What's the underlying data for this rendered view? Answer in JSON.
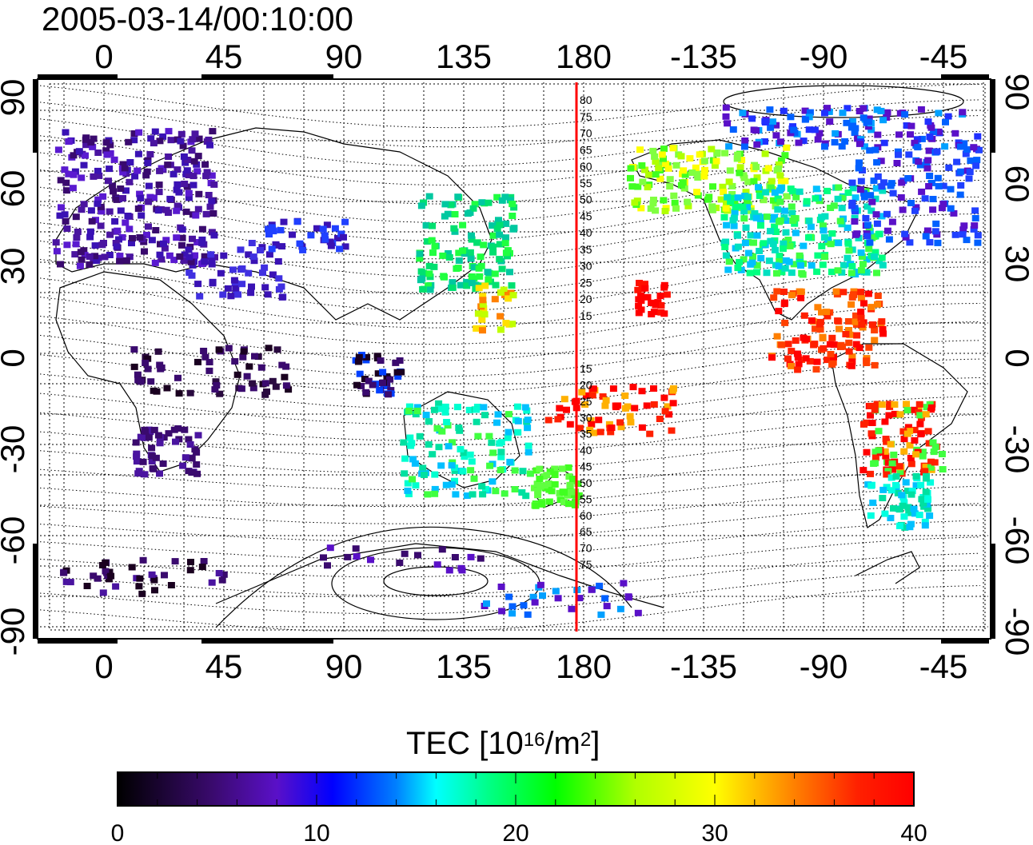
{
  "timestamp": "2005-03-14/00:10:00",
  "map": {
    "top_lon_labels": [
      "0",
      "45",
      "90",
      "135",
      "180",
      "-135",
      "-90",
      "-45"
    ],
    "bottom_lon_labels": [
      "0",
      "45",
      "90",
      "135",
      "180",
      "-135",
      "-90",
      "-45"
    ],
    "left_lat_labels": [
      "90",
      "60",
      "30",
      "0",
      "-30",
      "-60",
      "-90"
    ],
    "right_lat_labels": [
      "90",
      "60",
      "30",
      "0",
      "-30",
      "-60",
      "-90"
    ],
    "meridian_line_color": "#ff0000",
    "magnetic_lat_labels_north": [
      "80",
      "75",
      "70",
      "65",
      "60",
      "55",
      "50",
      "45",
      "40",
      "35",
      "30",
      "25",
      "20",
      "15"
    ],
    "magnetic_lat_labels_south": [
      "15",
      "20",
      "25",
      "30",
      "35",
      "40",
      "45",
      "50",
      "55",
      "60",
      "65",
      "70",
      "75"
    ]
  },
  "colorbar": {
    "title_main": "TEC  [10",
    "title_sup1": "16",
    "title_mid": "/m",
    "title_sup2": "2",
    "title_end": "]",
    "tick_labels": [
      "0",
      "10",
      "20",
      "30",
      "40"
    ],
    "colors": [
      "#000000",
      "#3a0a6e",
      "#5a10c8",
      "#0000ff",
      "#00aaff",
      "#00ffff",
      "#00ff80",
      "#00ff00",
      "#b0ff00",
      "#ffff00",
      "#ff8000",
      "#ff2000",
      "#ff0000"
    ]
  }
}
